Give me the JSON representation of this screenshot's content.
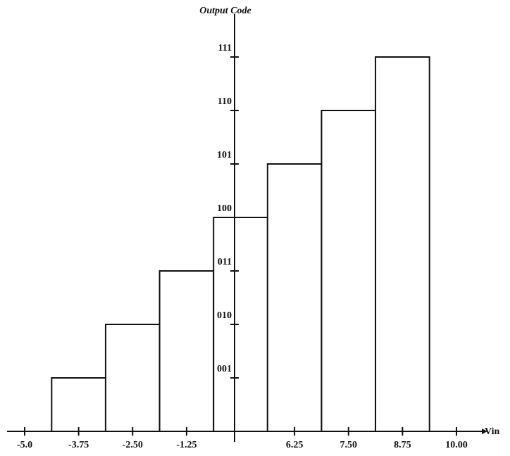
{
  "chart_data": {
    "type": "step-bar",
    "x_label": "Vin",
    "y_label": "Output Code",
    "categories": [
      "-5.0",
      "-3.75",
      "-2.50",
      "-1.25",
      null,
      "6.25",
      "7.50",
      "8.75",
      "10.00"
    ],
    "values": [
      null,
      1,
      2,
      3,
      4,
      5,
      6,
      7,
      null
    ],
    "ylim": [
      0,
      7.75
    ],
    "yticks": [
      {
        "value": 1,
        "label": "001"
      },
      {
        "value": 2,
        "label": "010"
      },
      {
        "value": 3,
        "label": "011"
      },
      {
        "value": 4,
        "label": "100"
      },
      {
        "value": 5,
        "label": "101"
      },
      {
        "value": 6,
        "label": "110"
      },
      {
        "value": 7,
        "label": "111"
      }
    ],
    "color": "#ffffff",
    "grid": false
  }
}
